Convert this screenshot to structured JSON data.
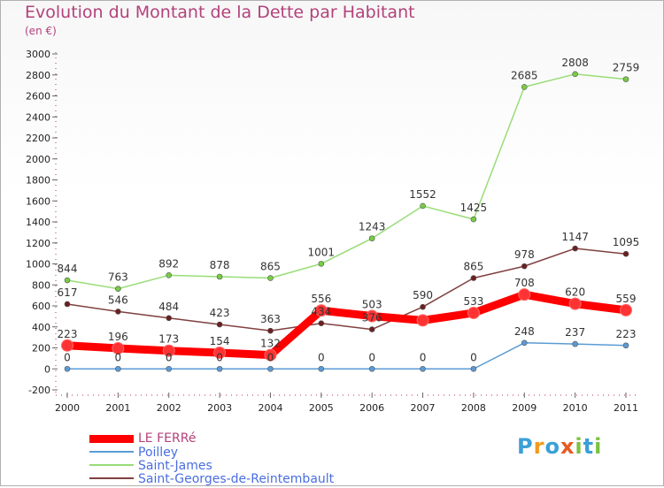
{
  "header": {
    "title": "Evolution du Montant de la Dette par Habitant",
    "subtitle": "(en €)"
  },
  "logo": {
    "text": "Proxiti",
    "letters": [
      "P",
      "r",
      "o",
      "x",
      "i",
      "t",
      "i"
    ],
    "colors": [
      "#3aa0d8",
      "#f29a1d",
      "#3aa0d8",
      "#e85a20",
      "#7cc242",
      "#3aa0d8",
      "#7cc242"
    ]
  },
  "chart_data": {
    "type": "line",
    "title": "Evolution du Montant de la Dette par Habitant",
    "subtitle": "(en €)",
    "xlabel": "",
    "ylabel": "",
    "ylim": [
      -200,
      3000
    ],
    "yticks": [
      -200,
      0,
      200,
      400,
      600,
      800,
      1000,
      1200,
      1400,
      1600,
      1800,
      2000,
      2200,
      2400,
      2600,
      2800,
      3000
    ],
    "x": [
      "2000",
      "2001",
      "2002",
      "2003",
      "2004",
      "2005",
      "2006",
      "2007",
      "2008",
      "2009",
      "2010",
      "2011"
    ],
    "grid": false,
    "legend_position": "bottom-left",
    "series": [
      {
        "name": "LE FERRé",
        "color": "#ff0000",
        "marker_fill": "#ff3333",
        "bold": true,
        "values": [
          223,
          196,
          173,
          154,
          132,
          556,
          503,
          462,
          533,
          708,
          620,
          559
        ],
        "labels": [
          "223",
          "196",
          "173",
          "154",
          "132",
          "556",
          "503",
          "",
          "533",
          "708",
          "620",
          "559"
        ]
      },
      {
        "name": "Poilley",
        "color": "#5b9bd5",
        "marker_fill": "#5b9bd5",
        "bold": false,
        "values": [
          0,
          0,
          0,
          0,
          0,
          0,
          0,
          0,
          0,
          248,
          237,
          223
        ],
        "labels": [
          "0",
          "0",
          "0",
          "0",
          "0",
          "0",
          "0",
          "0",
          "0",
          "248",
          "237",
          "223"
        ]
      },
      {
        "name": "Saint-James",
        "color": "#99dd77",
        "marker_fill": "#77cc44",
        "bold": false,
        "values": [
          844,
          763,
          892,
          878,
          865,
          1001,
          1243,
          1552,
          1425,
          2685,
          2808,
          2759
        ],
        "labels": [
          "844",
          "763",
          "892",
          "878",
          "865",
          "1001",
          "1243",
          "1552",
          "1425",
          "2685",
          "2808",
          "2759"
        ]
      },
      {
        "name": "Saint-Georges-de-Reintembault",
        "color": "#804040",
        "marker_fill": "#6b2020",
        "bold": false,
        "values": [
          617,
          546,
          484,
          423,
          363,
          434,
          376,
          590,
          865,
          978,
          1147,
          1095
        ],
        "labels": [
          "617",
          "546",
          "484",
          "423",
          "363",
          "434",
          "376",
          "590",
          "865",
          "978",
          "1147",
          "1095"
        ]
      }
    ]
  }
}
